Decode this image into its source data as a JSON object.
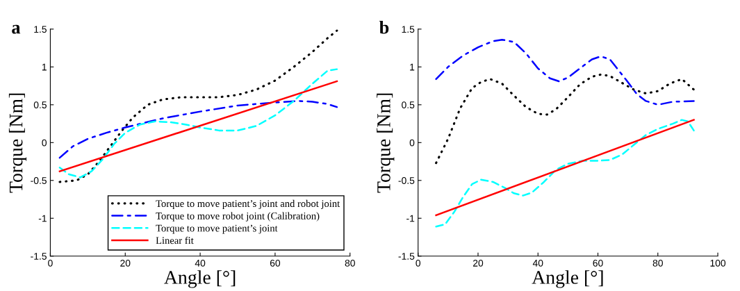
{
  "chart_data": [
    {
      "type": "line",
      "title": "a",
      "xlabel": "Angle [°]",
      "ylabel": "Torque [Nm]",
      "xlim": [
        0,
        80
      ],
      "xticks": [
        0,
        20,
        40,
        60,
        80
      ],
      "ylim": [
        -1.5,
        1.5
      ],
      "yticks": [
        -1.5,
        -1,
        -0.5,
        0,
        0.5,
        1,
        1.5
      ],
      "grid": false,
      "legend": "bottom right",
      "series": [
        {
          "name": "Torque to move patient’s joint and robot joint",
          "color": "#000000",
          "line_style": "dotted",
          "x": [
            2.5,
            7,
            10,
            13,
            16,
            19,
            22,
            26,
            30,
            35,
            40,
            45,
            50,
            55,
            60,
            65,
            70,
            74,
            76.5
          ],
          "values": [
            -0.52,
            -0.5,
            -0.42,
            -0.25,
            -0.05,
            0.15,
            0.33,
            0.5,
            0.57,
            0.6,
            0.6,
            0.6,
            0.63,
            0.7,
            0.82,
            1.0,
            1.2,
            1.38,
            1.48
          ]
        },
        {
          "name": "Torque to move robot joint (Calibration)",
          "color": "#0000ff",
          "line_style": "dashdot",
          "x": [
            2.5,
            6,
            10,
            15,
            20,
            25,
            30,
            40,
            50,
            60,
            66,
            70,
            74,
            76.5
          ],
          "values": [
            -0.2,
            -0.05,
            0.05,
            0.13,
            0.2,
            0.26,
            0.32,
            0.41,
            0.49,
            0.53,
            0.55,
            0.54,
            0.51,
            0.47
          ]
        },
        {
          "name": "Torque to move patient’s joint",
          "color": "#00ffff",
          "line_style": "dashed",
          "x": [
            2.5,
            5,
            8,
            11,
            14,
            17,
            20,
            24,
            28,
            32,
            36,
            40,
            45,
            50,
            55,
            60,
            65,
            70,
            74,
            76.5
          ],
          "values": [
            -0.33,
            -0.42,
            -0.46,
            -0.38,
            -0.22,
            -0.02,
            0.13,
            0.24,
            0.28,
            0.27,
            0.24,
            0.2,
            0.16,
            0.16,
            0.22,
            0.36,
            0.55,
            0.78,
            0.95,
            0.97
          ]
        },
        {
          "name": "Linear fit",
          "color": "#ff0000",
          "line_style": "solid",
          "x": [
            2.5,
            76.5
          ],
          "values": [
            -0.38,
            0.81
          ]
        }
      ]
    },
    {
      "type": "line",
      "title": "b",
      "xlabel": "Angle [°]",
      "ylabel": "Torque [Nm]",
      "xlim": [
        0,
        100
      ],
      "xticks": [
        0,
        20,
        40,
        60,
        80,
        100
      ],
      "ylim": [
        -1.5,
        1.5
      ],
      "yticks": [
        -1.5,
        -1,
        -0.5,
        0,
        0.5,
        1,
        1.5
      ],
      "grid": false,
      "legend": false,
      "series": [
        {
          "color": "#0000ff",
          "line_style": "dashdot",
          "x": [
            6,
            10,
            15,
            20,
            25,
            28,
            32,
            36,
            40,
            44,
            47,
            50,
            54,
            58,
            61,
            64,
            67,
            70,
            73,
            76,
            80,
            85,
            92
          ],
          "values": [
            0.84,
            1.0,
            1.15,
            1.26,
            1.34,
            1.36,
            1.33,
            1.18,
            0.98,
            0.85,
            0.81,
            0.86,
            0.98,
            1.1,
            1.14,
            1.1,
            0.95,
            0.8,
            0.64,
            0.55,
            0.5,
            0.54,
            0.55
          ]
        },
        {
          "color": "#000000",
          "line_style": "dotted",
          "x": [
            6,
            10,
            14,
            18,
            21,
            24,
            28,
            32,
            36,
            40,
            43,
            46,
            50,
            54,
            58,
            61,
            64,
            68,
            72,
            76,
            80,
            84,
            88,
            92
          ],
          "values": [
            -0.27,
            0.05,
            0.45,
            0.72,
            0.8,
            0.84,
            0.78,
            0.62,
            0.47,
            0.38,
            0.37,
            0.44,
            0.6,
            0.77,
            0.87,
            0.9,
            0.88,
            0.79,
            0.7,
            0.65,
            0.68,
            0.78,
            0.84,
            0.7
          ]
        },
        {
          "color": "#00ffff",
          "line_style": "dashed",
          "x": [
            6,
            9,
            12,
            15,
            18,
            21,
            25,
            29,
            32,
            35,
            38,
            42,
            46,
            50,
            55,
            60,
            64,
            68,
            72,
            76,
            80,
            85,
            88,
            90,
            92
          ],
          "values": [
            -1.11,
            -1.08,
            -0.92,
            -0.72,
            -0.55,
            -0.49,
            -0.52,
            -0.6,
            -0.67,
            -0.7,
            -0.66,
            -0.52,
            -0.36,
            -0.28,
            -0.24,
            -0.24,
            -0.23,
            -0.16,
            -0.03,
            0.1,
            0.18,
            0.25,
            0.3,
            0.28,
            0.16
          ]
        },
        {
          "color": "#ff0000",
          "line_style": "solid",
          "x": [
            6,
            92
          ],
          "values": [
            -0.96,
            0.3
          ]
        }
      ]
    }
  ]
}
